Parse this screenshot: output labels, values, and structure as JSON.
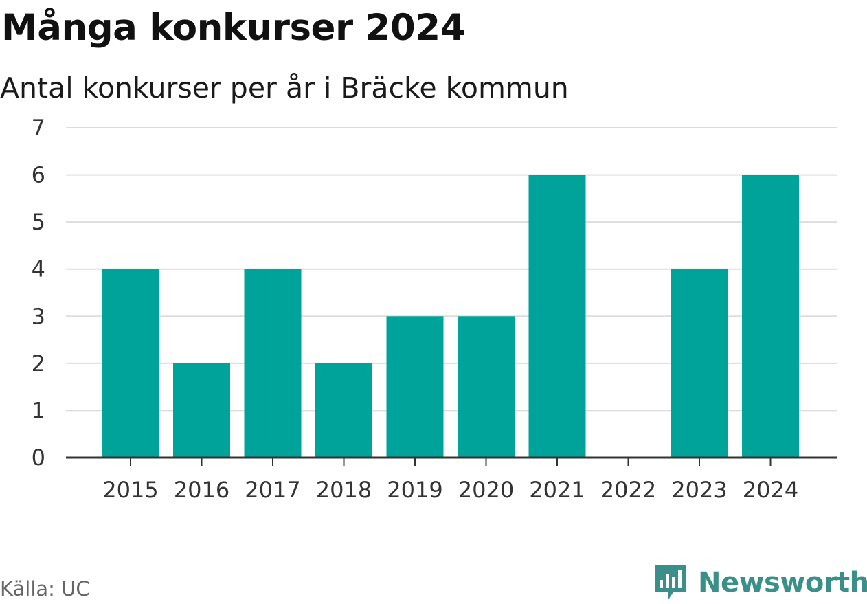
{
  "chart_data": {
    "type": "bar",
    "title": "Många konkurser 2024",
    "subtitle": "Antal konkurser per år i Bräcke kommun",
    "categories": [
      "2015",
      "2016",
      "2017",
      "2018",
      "2019",
      "2020",
      "2021",
      "2022",
      "2023",
      "2024"
    ],
    "values": [
      4,
      2,
      4,
      2,
      3,
      3,
      6,
      0,
      4,
      6
    ],
    "ylim": [
      0,
      7
    ],
    "yticks": [
      0,
      1,
      2,
      3,
      4,
      5,
      6,
      7
    ],
    "grid": true,
    "bar_color": "#00a39a"
  },
  "footer": {
    "source": "Källa: UC",
    "brand": "Newsworthy",
    "brand_icon": "newsworthy-logo-icon",
    "brand_color": "#3a9088"
  }
}
